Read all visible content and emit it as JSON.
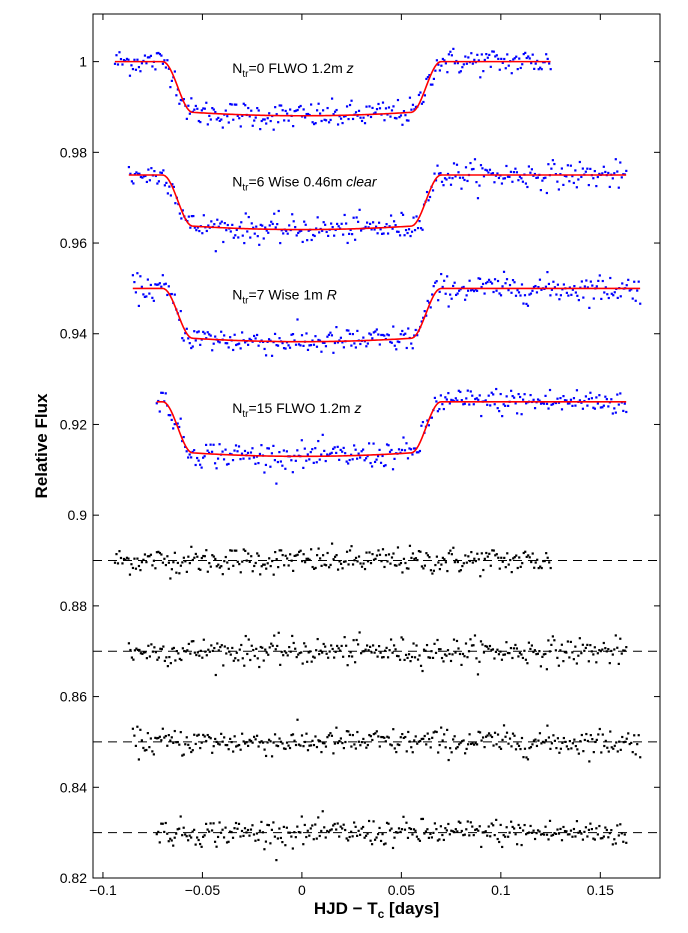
{
  "chart_data": {
    "type": "scatter",
    "title": "",
    "xlabel": {
      "main": "HJD − T",
      "sub": "c",
      "tail": " [days]"
    },
    "ylabel": "Relative Flux",
    "xlim": [
      -0.105,
      0.18
    ],
    "ylim": [
      0.82,
      1.0105
    ],
    "xticks": [
      -0.1,
      -0.05,
      0,
      0.05,
      0.1,
      0.15
    ],
    "xtick_labels": [
      "−0.1",
      "−0.05",
      "0",
      "0.05",
      "0.1",
      "0.15"
    ],
    "yticks": [
      0.82,
      0.84,
      0.86,
      0.88,
      0.9,
      0.92,
      0.94,
      0.96,
      0.98,
      1.0
    ],
    "ytick_labels": [
      "0.82",
      "0.84",
      "0.86",
      "0.88",
      "0.9",
      "0.92",
      "0.94",
      "0.96",
      "0.98",
      "1"
    ],
    "grid": false,
    "colors": {
      "data": "#0000ff",
      "model": "#ff0000",
      "residuals": "#000000",
      "baseline": "#000000"
    },
    "light_curves": [
      {
        "label": {
          "pre": "N",
          "sub": "tr",
          "mid": "=0 FLWO 1.2m  ",
          "band": "z"
        },
        "label_pos": {
          "x": -0.035,
          "y": 0.9975
        },
        "baseline": 1.0,
        "depth": 0.0127,
        "x_range": [
          -0.094,
          0.125
        ],
        "ingress": [
          -0.07,
          -0.055
        ],
        "egress": [
          0.055,
          0.07
        ],
        "scatter": 0.0015,
        "residual_offset": 0.89,
        "residual_scatter": 0.0015
      },
      {
        "label": {
          "pre": "N",
          "sub": "tr",
          "mid": "=6 Wise 0.46m  ",
          "band": "clear"
        },
        "label_pos": {
          "x": -0.035,
          "y": 0.9725
        },
        "baseline": 0.975,
        "depth": 0.0128,
        "x_range": [
          -0.087,
          0.163
        ],
        "ingress": [
          -0.07,
          -0.055
        ],
        "egress": [
          0.055,
          0.07
        ],
        "scatter": 0.0015,
        "residual_offset": 0.87,
        "residual_scatter": 0.0017
      },
      {
        "label": {
          "pre": "N",
          "sub": "tr",
          "mid": "=7 Wise 1m  ",
          "band": "R"
        },
        "label_pos": {
          "x": -0.035,
          "y": 0.9475
        },
        "baseline": 0.95,
        "depth": 0.0125,
        "x_range": [
          -0.085,
          0.17
        ],
        "ingress": [
          -0.07,
          -0.055
        ],
        "egress": [
          0.055,
          0.07
        ],
        "scatter": 0.0015,
        "residual_offset": 0.85,
        "residual_scatter": 0.0015
      },
      {
        "label": {
          "pre": "N",
          "sub": "tr",
          "mid": "=15 FLWO 1.2m  ",
          "band": "z"
        },
        "label_pos": {
          "x": -0.035,
          "y": 0.9225
        },
        "baseline": 0.925,
        "depth": 0.0128,
        "x_range": [
          -0.073,
          0.163
        ],
        "ingress": [
          -0.07,
          -0.055
        ],
        "egress": [
          0.055,
          0.07
        ],
        "scatter": 0.0015,
        "residual_offset": 0.83,
        "residual_scatter": 0.0015
      }
    ]
  }
}
